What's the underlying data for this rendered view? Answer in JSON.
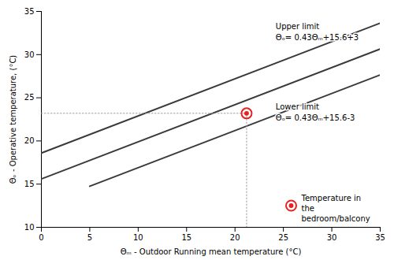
{
  "chart_data": {
    "type": "line",
    "xlabel": "Θₘ - Outdoor Running mean temperature (°C)",
    "ylabel": "Θₒ - Operative temperature, (°C)",
    "xlim": [
      0,
      35
    ],
    "ylim": [
      10,
      35
    ],
    "xticks": [
      0,
      5,
      10,
      15,
      20,
      25,
      30,
      35
    ],
    "yticks": [
      10,
      15,
      20,
      25,
      30,
      35
    ],
    "grid": false,
    "legend": "lower right",
    "series": [
      {
        "color": "#3a3a3a",
        "x": [
          0,
          35
        ],
        "values": [
          18.6,
          33.65
        ]
      },
      {
        "color": "#3a3a3a",
        "x": [
          0,
          35
        ],
        "values": [
          15.6,
          30.65
        ]
      },
      {
        "color": "#3a3a3a",
        "x": [
          5,
          35
        ],
        "values": [
          14.75,
          27.65
        ]
      },
      {
        "name": "Temperature in\nthe\nbedroom/balcony",
        "type": "scatter",
        "color": "#e82020",
        "x": [
          21.2
        ],
        "values": [
          23.2
        ]
      }
    ],
    "annotations": [
      {
        "text": "Upper limit\nΘₒ= 0.43Θₘ+15.6+3",
        "x": 24.2,
        "y": 33.8
      },
      {
        "text": "Lower limit\nΘₒ= 0.43Θₘ+15.6-3",
        "x": 24.2,
        "y": 24.5
      }
    ]
  }
}
